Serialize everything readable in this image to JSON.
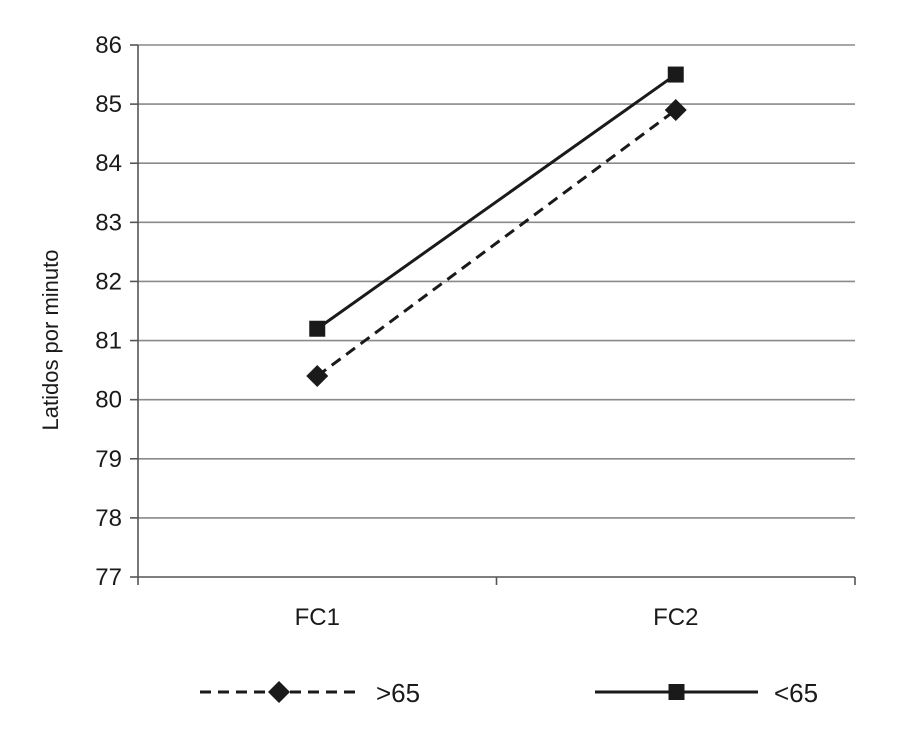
{
  "chart_data": {
    "type": "line",
    "categories": [
      "FC1",
      "FC2"
    ],
    "series": [
      {
        "name": ">65",
        "values": [
          80.4,
          84.9
        ],
        "line_style": "dashed",
        "marker": "diamond",
        "color": "#1a1a1a"
      },
      {
        "name": "<65",
        "values": [
          81.2,
          85.5
        ],
        "line_style": "solid",
        "marker": "square",
        "color": "#1a1a1a"
      }
    ],
    "ylabel": "Latidos por minuto",
    "xlabel": "",
    "ylim": [
      77,
      86
    ],
    "yticks": [
      77,
      78,
      79,
      80,
      81,
      82,
      83,
      84,
      85,
      86
    ],
    "grid": true,
    "legend_position": "bottom"
  }
}
